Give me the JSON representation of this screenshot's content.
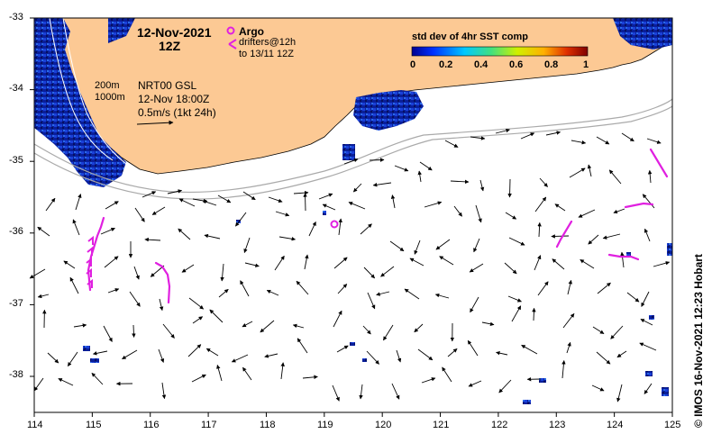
{
  "map": {
    "date": "12-Nov-2021",
    "time": "12Z",
    "legend_argo": "Argo",
    "legend_drifters_line1": "drifters@12h",
    "legend_drifters_line2": "to 13/11 12Z",
    "isobath_200": "200m",
    "isobath_1000": "1000m",
    "product": "NRT00 GSL",
    "product_time": "12-Nov 18:00Z",
    "vector_scale": "0.5m/s (1kt 24h)",
    "colorbar_title": "std dev of 4hr SST comp",
    "colorbar_ticks": [
      "0",
      "0.2",
      "0.4",
      "0.6",
      "0.8",
      "1"
    ],
    "credit": "© IMOS 16-Nov-2021 12:23 Hobart",
    "x_ticks": [
      "114",
      "115",
      "116",
      "117",
      "118",
      "119",
      "120",
      "121",
      "122",
      "123",
      "124",
      "125"
    ],
    "y_ticks": [
      "-33",
      "-34",
      "-35",
      "-36",
      "-37",
      "-38"
    ],
    "colors": {
      "land": "#fcc994",
      "ocean": "#ffffff",
      "argo": "#e020e0",
      "drifter": "#e020e0",
      "isobath": "#aaaaaa",
      "sst_high": "#0a1fa0",
      "sst_low": "#0a1f80"
    },
    "extent": {
      "lon_min": 114,
      "lon_max": 125,
      "lat_min": -38.5,
      "lat_max": -33
    }
  }
}
